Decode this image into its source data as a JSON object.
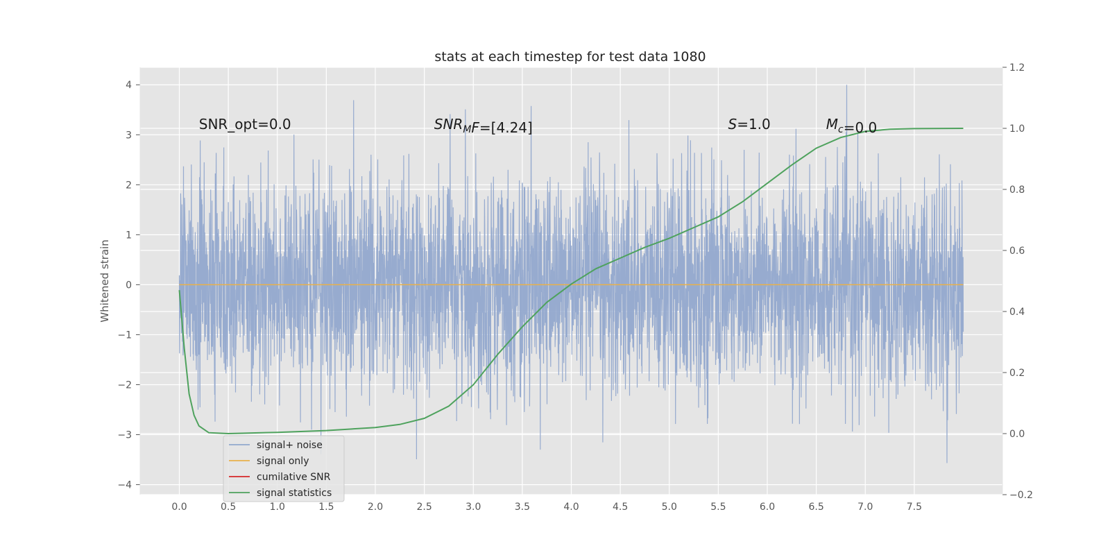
{
  "chart_data": {
    "type": "line",
    "title": "stats at each timestep for test data 1080",
    "ylabel": "Whitened strain",
    "xlim": [
      -0.4,
      8.4
    ],
    "ylim": [
      -4.2,
      4.35
    ],
    "y2lim": [
      -0.2,
      1.2
    ],
    "x_ticks": [
      "0.0",
      "0.5",
      "1.0",
      "1.5",
      "2.0",
      "2.5",
      "3.0",
      "3.5",
      "4.0",
      "4.5",
      "5.0",
      "5.5",
      "6.0",
      "6.5",
      "7.0",
      "7.5"
    ],
    "y_ticks": [
      "4",
      "3",
      "2",
      "1",
      "0",
      "−1",
      "−2",
      "−3",
      "−4"
    ],
    "y2_ticks": [
      "1.2",
      "1.0",
      "0.8",
      "0.6",
      "0.4",
      "0.2",
      "0.0",
      "−0.2"
    ],
    "grid": true,
    "legend_location": "lower-left",
    "annotations": [
      {
        "key": "snr_opt",
        "text": "SNR_opt=0.0",
        "x": 0.2,
        "y": 3.2
      },
      {
        "key": "snr_mf",
        "text": "=[4.24]",
        "x": 2.6,
        "y": 3.2
      },
      {
        "key": "s_stat",
        "text": "=1.0",
        "x": 5.6,
        "y": 3.2
      },
      {
        "key": "mc",
        "text": "=0.0",
        "x": 6.6,
        "y": 3.2
      }
    ],
    "series": [
      {
        "name": "signal+ noise",
        "color": "#92a8cd",
        "kind": "noise",
        "x_range": [
          0.0,
          8.0
        ],
        "y_peak_range": [
          -3.76,
          4.0
        ]
      },
      {
        "name": "signal only",
        "color": "#e8b04a",
        "kind": "flat",
        "x": [
          0.0,
          8.0
        ],
        "y": [
          0.0,
          0.0
        ]
      },
      {
        "name": "cumilative SNR",
        "color": "#d62728",
        "kind": "none",
        "x": [],
        "y": []
      },
      {
        "name": "signal statistics",
        "color": "#4ea25d",
        "kind": "line",
        "axis": "right",
        "x": [
          0.0,
          0.05,
          0.1,
          0.15,
          0.2,
          0.3,
          0.5,
          1.0,
          1.5,
          2.0,
          2.25,
          2.5,
          2.75,
          3.0,
          3.25,
          3.5,
          3.75,
          4.0,
          4.25,
          4.5,
          4.75,
          5.0,
          5.25,
          5.5,
          5.75,
          6.0,
          6.25,
          6.5,
          6.75,
          7.0,
          7.25,
          7.5,
          8.0
        ],
        "y": [
          0.47,
          0.28,
          0.13,
          0.06,
          0.025,
          0.003,
          0.0,
          0.004,
          0.01,
          0.02,
          0.03,
          0.05,
          0.09,
          0.16,
          0.26,
          0.35,
          0.43,
          0.49,
          0.54,
          0.575,
          0.61,
          0.64,
          0.675,
          0.71,
          0.76,
          0.82,
          0.88,
          0.935,
          0.97,
          0.99,
          0.997,
          0.999,
          1.0
        ]
      }
    ]
  }
}
